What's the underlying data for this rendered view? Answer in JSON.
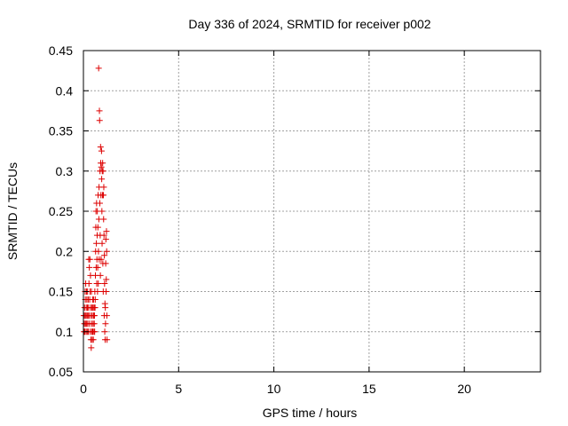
{
  "chart_data": {
    "type": "scatter",
    "title": "Day 336 of 2024, SRMTID for receiver p002",
    "xlabel": "GPS time / hours",
    "ylabel": "SRMTID / TECUs",
    "xlim": [
      0,
      24
    ],
    "ylim": [
      0.05,
      0.45
    ],
    "x_ticks": [
      "0",
      "5",
      "10",
      "15",
      "20"
    ],
    "x_tick_values": [
      0,
      5,
      10,
      15,
      20
    ],
    "y_ticks": [
      "0.05",
      "0.1",
      "0.15",
      "0.2",
      "0.25",
      "0.3",
      "0.35",
      "0.4",
      "0.45"
    ],
    "y_tick_values": [
      0.05,
      0.1,
      0.15,
      0.2,
      0.25,
      0.3,
      0.35,
      0.4,
      0.45
    ],
    "grid": true,
    "marker": "plus",
    "marker_color": "#dd0000",
    "series": [
      {
        "values": [
          [
            0.02,
            0.12
          ],
          [
            0.03,
            0.1
          ],
          [
            0.05,
            0.11
          ],
          [
            0.06,
            0.13
          ],
          [
            0.07,
            0.1
          ],
          [
            0.08,
            0.12
          ],
          [
            0.09,
            0.15
          ],
          [
            0.1,
            0.14
          ],
          [
            0.11,
            0.11
          ],
          [
            0.12,
            0.16
          ],
          [
            0.13,
            0.12
          ],
          [
            0.14,
            0.1
          ],
          [
            0.15,
            0.13
          ],
          [
            0.16,
            0.15
          ],
          [
            0.17,
            0.11
          ],
          [
            0.18,
            0.14
          ],
          [
            0.19,
            0.12
          ],
          [
            0.2,
            0.1
          ],
          [
            0.21,
            0.13
          ],
          [
            0.22,
            0.15
          ],
          [
            0.23,
            0.11
          ],
          [
            0.24,
            0.12
          ],
          [
            0.25,
            0.14
          ],
          [
            0.26,
            0.1
          ],
          [
            0.27,
            0.13
          ],
          [
            0.28,
            0.19
          ],
          [
            0.29,
            0.16
          ],
          [
            0.3,
            0.12
          ],
          [
            0.31,
            0.18
          ],
          [
            0.32,
            0.11
          ],
          [
            0.33,
            0.14
          ],
          [
            0.34,
            0.19
          ],
          [
            0.35,
            0.15
          ],
          [
            0.36,
            0.1
          ],
          [
            0.37,
            0.17
          ],
          [
            0.38,
            0.13
          ],
          [
            0.39,
            0.09
          ],
          [
            0.4,
            0.12
          ],
          [
            0.41,
            0.08
          ],
          [
            0.42,
            0.15
          ],
          [
            0.43,
            0.11
          ],
          [
            0.44,
            0.1
          ],
          [
            0.45,
            0.13
          ],
          [
            0.46,
            0.09
          ],
          [
            0.47,
            0.12
          ],
          [
            0.48,
            0.14
          ],
          [
            0.49,
            0.1
          ],
          [
            0.5,
            0.13
          ],
          [
            0.51,
            0.11
          ],
          [
            0.52,
            0.09
          ],
          [
            0.53,
            0.14
          ],
          [
            0.54,
            0.12
          ],
          [
            0.55,
            0.1
          ],
          [
            0.56,
            0.13
          ],
          [
            0.57,
            0.11
          ],
          [
            0.58,
            0.12
          ],
          [
            0.59,
            0.1
          ],
          [
            0.6,
            0.15
          ],
          [
            0.61,
            0.13
          ],
          [
            0.62,
            0.14
          ],
          [
            0.63,
            0.17
          ],
          [
            0.64,
            0.2
          ],
          [
            0.65,
            0.23
          ],
          [
            0.66,
            0.25
          ],
          [
            0.67,
            0.18
          ],
          [
            0.68,
            0.21
          ],
          [
            0.69,
            0.26
          ],
          [
            0.7,
            0.16
          ],
          [
            0.71,
            0.19
          ],
          [
            0.72,
            0.22
          ],
          [
            0.73,
            0.25
          ],
          [
            0.74,
            0.15
          ],
          [
            0.75,
            0.18
          ],
          [
            0.76,
            0.23
          ],
          [
            0.77,
            0.27
          ],
          [
            0.78,
            0.16
          ],
          [
            0.79,
            0.2
          ],
          [
            0.8,
            0.428
          ],
          [
            0.81,
            0.24
          ],
          [
            0.82,
            0.28
          ],
          [
            0.83,
            0.19
          ],
          [
            0.84,
            0.375
          ],
          [
            0.85,
            0.363
          ],
          [
            0.86,
            0.26
          ],
          [
            0.87,
            0.3
          ],
          [
            0.88,
            0.22
          ],
          [
            0.89,
            0.17
          ],
          [
            0.9,
            0.33
          ],
          [
            0.91,
            0.31
          ],
          [
            0.92,
            0.27
          ],
          [
            0.93,
            0.19
          ],
          [
            0.94,
            0.305
          ],
          [
            0.95,
            0.325
          ],
          [
            0.96,
            0.29
          ],
          [
            0.97,
            0.25
          ],
          [
            0.98,
            0.21
          ],
          [
            0.99,
            0.3
          ],
          [
            1.0,
            0.27
          ],
          [
            1.01,
            0.31
          ],
          [
            1.02,
            0.185
          ],
          [
            1.03,
            0.3
          ],
          [
            1.04,
            0.15
          ],
          [
            1.05,
            0.27
          ],
          [
            1.06,
            0.24
          ],
          [
            1.07,
            0.28
          ],
          [
            1.08,
            0.22
          ],
          [
            1.09,
            0.12
          ],
          [
            1.1,
            0.195
          ],
          [
            1.11,
            0.16
          ],
          [
            1.12,
            0.1
          ],
          [
            1.13,
            0.135
          ],
          [
            1.14,
            0.09
          ],
          [
            1.15,
            0.13
          ],
          [
            1.16,
            0.11
          ],
          [
            1.17,
            0.185
          ],
          [
            1.18,
            0.215
          ],
          [
            1.19,
            0.15
          ],
          [
            1.2,
            0.165
          ],
          [
            1.21,
            0.225
          ],
          [
            1.22,
            0.2
          ],
          [
            1.23,
            0.12
          ],
          [
            1.24,
            0.09
          ]
        ]
      }
    ]
  }
}
